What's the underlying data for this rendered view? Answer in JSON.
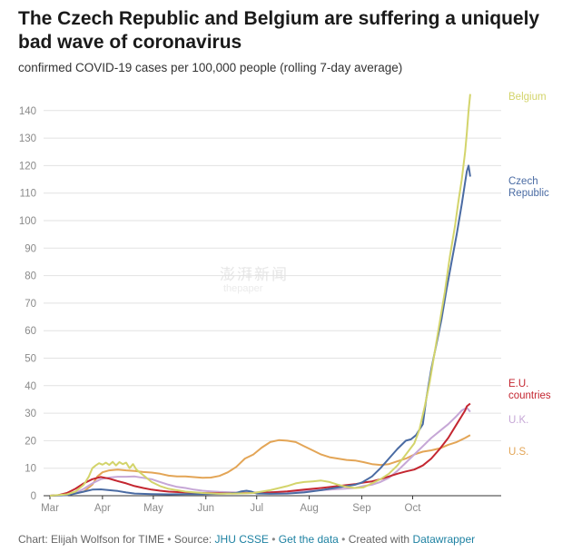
{
  "title": "The Czech Republic and Belgium are suffering a uniquely bad wave of coronavirus",
  "subtitle": "confirmed COVID-19 cases per 100,000 people (rolling 7-day average)",
  "footer": {
    "credit": "Chart: Elijah Wolfson for TIME",
    "source_prefix": "Source:",
    "source_link": "JHU CSSE",
    "get_data": "Get the data",
    "created_with": "Created with",
    "datawrapper": "Datawrapper",
    "separator": "•"
  },
  "watermark": {
    "cn": "澎湃新闻",
    "en": "thepaper"
  },
  "chart_data": {
    "type": "line",
    "title": "The Czech Republic and Belgium are suffering a uniquely bad wave of coronavirus",
    "ylabel": "confirmed COVID-19 cases per 100,000 people (rolling 7-day average)",
    "xlabel": "",
    "xlim": [
      0,
      270
    ],
    "ylim": [
      0,
      146
    ],
    "x_unit": "days since Mar 1, 2020",
    "y_ticks": [
      0,
      10,
      20,
      30,
      40,
      50,
      60,
      70,
      80,
      90,
      100,
      110,
      120,
      130,
      140
    ],
    "x_ticks": [
      {
        "label": "Mar",
        "day": 0
      },
      {
        "label": "Apr",
        "day": 31
      },
      {
        "label": "May",
        "day": 61
      },
      {
        "label": "Jun",
        "day": 92
      },
      {
        "label": "Jul",
        "day": 122
      },
      {
        "label": "Aug",
        "day": 153
      },
      {
        "label": "Sep",
        "day": 184
      },
      {
        "label": "Oct",
        "day": 214
      }
    ],
    "series": [
      {
        "name": "U.S.",
        "label": [
          "U.S."
        ],
        "color": "#e3a556",
        "points": [
          [
            0,
            0
          ],
          [
            10,
            0.3
          ],
          [
            20,
            1.5
          ],
          [
            25,
            4
          ],
          [
            28,
            7
          ],
          [
            31,
            8.5
          ],
          [
            35,
            9.2
          ],
          [
            40,
            9.5
          ],
          [
            45,
            9.2
          ],
          [
            50,
            9
          ],
          [
            55,
            8.6
          ],
          [
            60,
            8.4
          ],
          [
            65,
            8
          ],
          [
            70,
            7.3
          ],
          [
            75,
            7
          ],
          [
            80,
            7
          ],
          [
            90,
            6.5
          ],
          [
            95,
            6.6
          ],
          [
            100,
            7.2
          ],
          [
            105,
            8.5
          ],
          [
            110,
            10.5
          ],
          [
            115,
            13.5
          ],
          [
            120,
            15
          ],
          [
            125,
            17.5
          ],
          [
            130,
            19.5
          ],
          [
            135,
            20.2
          ],
          [
            140,
            20
          ],
          [
            145,
            19.5
          ],
          [
            150,
            18
          ],
          [
            155,
            16.5
          ],
          [
            160,
            15
          ],
          [
            165,
            14
          ],
          [
            170,
            13.5
          ],
          [
            175,
            13
          ],
          [
            180,
            12.8
          ],
          [
            185,
            12.2
          ],
          [
            190,
            11.5
          ],
          [
            195,
            11.2
          ],
          [
            200,
            11.5
          ],
          [
            205,
            12.5
          ],
          [
            210,
            13.5
          ],
          [
            215,
            15
          ],
          [
            220,
            16
          ],
          [
            225,
            16.5
          ],
          [
            230,
            17.2
          ],
          [
            235,
            18.5
          ],
          [
            240,
            19.5
          ],
          [
            245,
            21
          ],
          [
            248,
            22
          ]
        ]
      },
      {
        "name": "U.K.",
        "label": [
          "U.K."
        ],
        "color": "#c6a7d6",
        "points": [
          [
            0,
            0
          ],
          [
            10,
            0.2
          ],
          [
            15,
            1
          ],
          [
            20,
            2.5
          ],
          [
            25,
            4.5
          ],
          [
            30,
            6
          ],
          [
            35,
            6.6
          ],
          [
            40,
            6.9
          ],
          [
            45,
            6.9
          ],
          [
            50,
            7
          ],
          [
            55,
            6.5
          ],
          [
            60,
            6
          ],
          [
            65,
            5
          ],
          [
            70,
            4
          ],
          [
            75,
            3.2
          ],
          [
            80,
            2.8
          ],
          [
            85,
            2.2
          ],
          [
            90,
            1.8
          ],
          [
            95,
            1.6
          ],
          [
            100,
            1.4
          ],
          [
            110,
            1.2
          ],
          [
            120,
            1.2
          ],
          [
            130,
            1.3
          ],
          [
            140,
            1.5
          ],
          [
            150,
            1.7
          ],
          [
            160,
            2
          ],
          [
            170,
            2.4
          ],
          [
            180,
            2.8
          ],
          [
            185,
            3.5
          ],
          [
            190,
            4
          ],
          [
            195,
            5
          ],
          [
            200,
            6.5
          ],
          [
            205,
            9
          ],
          [
            210,
            12
          ],
          [
            215,
            15
          ],
          [
            220,
            18
          ],
          [
            225,
            21
          ],
          [
            230,
            23.5
          ],
          [
            235,
            26
          ],
          [
            240,
            29
          ],
          [
            243,
            31
          ],
          [
            246,
            32
          ],
          [
            248,
            30.5
          ]
        ]
      },
      {
        "name": "E.U. countries",
        "label": [
          "E.U.",
          "countries"
        ],
        "color": "#c42630",
        "points": [
          [
            0,
            0
          ],
          [
            5,
            0.2
          ],
          [
            10,
            1
          ],
          [
            15,
            2.5
          ],
          [
            20,
            4.5
          ],
          [
            25,
            6
          ],
          [
            30,
            6.8
          ],
          [
            35,
            6.2
          ],
          [
            40,
            5.3
          ],
          [
            45,
            4.5
          ],
          [
            50,
            3.5
          ],
          [
            55,
            2.8
          ],
          [
            60,
            2.2
          ],
          [
            65,
            1.8
          ],
          [
            70,
            1.5
          ],
          [
            80,
            1.2
          ],
          [
            90,
            1
          ],
          [
            100,
            0.9
          ],
          [
            110,
            0.9
          ],
          [
            120,
            1
          ],
          [
            130,
            1.2
          ],
          [
            140,
            1.6
          ],
          [
            150,
            2.2
          ],
          [
            160,
            2.8
          ],
          [
            170,
            3.5
          ],
          [
            180,
            4.2
          ],
          [
            185,
            4.8
          ],
          [
            190,
            5.2
          ],
          [
            195,
            6
          ],
          [
            200,
            7
          ],
          [
            205,
            8
          ],
          [
            210,
            8.8
          ],
          [
            215,
            9.5
          ],
          [
            220,
            11
          ],
          [
            225,
            13.5
          ],
          [
            230,
            17
          ],
          [
            235,
            21
          ],
          [
            240,
            26
          ],
          [
            243,
            29
          ],
          [
            245,
            31
          ],
          [
            246,
            32.5
          ],
          [
            248,
            33.5
          ]
        ]
      },
      {
        "name": "Czech Republic",
        "label": [
          "Czech",
          "Republic"
        ],
        "color": "#4a6ba3",
        "points": [
          [
            0,
            0
          ],
          [
            10,
            0.2
          ],
          [
            15,
            0.8
          ],
          [
            20,
            1.5
          ],
          [
            25,
            2.2
          ],
          [
            30,
            2.3
          ],
          [
            35,
            2
          ],
          [
            40,
            1.7
          ],
          [
            45,
            1.2
          ],
          [
            50,
            0.8
          ],
          [
            60,
            0.6
          ],
          [
            70,
            0.5
          ],
          [
            80,
            0.6
          ],
          [
            90,
            0.6
          ],
          [
            100,
            0.7
          ],
          [
            110,
            1
          ],
          [
            113,
            1.6
          ],
          [
            116,
            1.8
          ],
          [
            119,
            1.5
          ],
          [
            122,
            0.8
          ],
          [
            130,
            0.7
          ],
          [
            140,
            0.8
          ],
          [
            150,
            1.2
          ],
          [
            160,
            2
          ],
          [
            170,
            3
          ],
          [
            180,
            4
          ],
          [
            184,
            4.8
          ],
          [
            190,
            7
          ],
          [
            195,
            10
          ],
          [
            200,
            13.5
          ],
          [
            205,
            17
          ],
          [
            210,
            20
          ],
          [
            213,
            20.5
          ],
          [
            216,
            22
          ],
          [
            220,
            26
          ],
          [
            222,
            35
          ],
          [
            225,
            46
          ],
          [
            228,
            55
          ],
          [
            231,
            64
          ],
          [
            234,
            75
          ],
          [
            237,
            85
          ],
          [
            240,
            95
          ],
          [
            243,
            106
          ],
          [
            245,
            114
          ],
          [
            246,
            118
          ],
          [
            247,
            120
          ],
          [
            248,
            116
          ]
        ]
      },
      {
        "name": "Belgium",
        "label": [
          "Belgium"
        ],
        "color": "#d3d46b",
        "points": [
          [
            0,
            0
          ],
          [
            10,
            0.5
          ],
          [
            15,
            1.5
          ],
          [
            20,
            4
          ],
          [
            23,
            7
          ],
          [
            25,
            10
          ],
          [
            27,
            11
          ],
          [
            29,
            11.8
          ],
          [
            31,
            11.3
          ],
          [
            33,
            12
          ],
          [
            35,
            11.2
          ],
          [
            37,
            12.3
          ],
          [
            39,
            11
          ],
          [
            41,
            12.2
          ],
          [
            43,
            11.5
          ],
          [
            45,
            12
          ],
          [
            47,
            10
          ],
          [
            49,
            11.5
          ],
          [
            51,
            9.5
          ],
          [
            55,
            7.5
          ],
          [
            60,
            5
          ],
          [
            65,
            3.5
          ],
          [
            70,
            2.5
          ],
          [
            80,
            1.5
          ],
          [
            90,
            1
          ],
          [
            100,
            0.7
          ],
          [
            110,
            0.8
          ],
          [
            120,
            1
          ],
          [
            130,
            2
          ],
          [
            140,
            3.5
          ],
          [
            145,
            4.5
          ],
          [
            150,
            5
          ],
          [
            155,
            5.2
          ],
          [
            160,
            5.5
          ],
          [
            165,
            5
          ],
          [
            170,
            4
          ],
          [
            175,
            3.2
          ],
          [
            180,
            2.8
          ],
          [
            185,
            3
          ],
          [
            190,
            4.5
          ],
          [
            195,
            6
          ],
          [
            200,
            8
          ],
          [
            205,
            11
          ],
          [
            210,
            15
          ],
          [
            215,
            19
          ],
          [
            218,
            24
          ],
          [
            221,
            32
          ],
          [
            224,
            41
          ],
          [
            227,
            52
          ],
          [
            230,
            63
          ],
          [
            233,
            74
          ],
          [
            236,
            87
          ],
          [
            239,
            98
          ],
          [
            241,
            107
          ],
          [
            243,
            115
          ],
          [
            245,
            125
          ],
          [
            246,
            132
          ],
          [
            247,
            140
          ],
          [
            248,
            146
          ]
        ]
      }
    ]
  }
}
